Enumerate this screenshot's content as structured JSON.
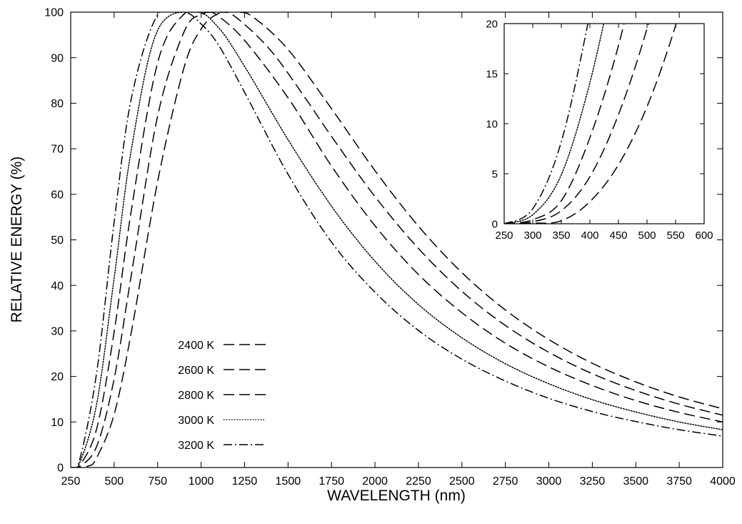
{
  "chart_data": [
    {
      "type": "line",
      "title": "",
      "xlabel": "WAVELENGTH (nm)",
      "ylabel": "RELATIVE ENERGY (%)",
      "xlim": [
        250,
        4000
      ],
      "ylim": [
        0,
        100
      ],
      "xticks": [
        250,
        500,
        750,
        1000,
        1250,
        1500,
        1750,
        2000,
        2250,
        2500,
        2750,
        3000,
        3250,
        3500,
        3750,
        4000
      ],
      "yticks": [
        0,
        10,
        20,
        30,
        40,
        50,
        60,
        70,
        80,
        90,
        100
      ],
      "grid": false,
      "legend_position": "lower-left",
      "series": [
        {
          "name": "2400 K",
          "style": "long-dash",
          "x": [
            250,
            350,
            400,
            500,
            600,
            750,
            900,
            1000,
            1100,
            1207,
            1300,
            1500,
            1750,
            2000,
            2250,
            2500,
            2750,
            3000,
            3250,
            3500,
            3750,
            4000
          ],
          "values": [
            0.0,
            0.3,
            2.2,
            11.7,
            30.0,
            62.8,
            87.6,
            96.3,
            99.7,
            100.0,
            98.9,
            91.8,
            78.8,
            65.2,
            53.0,
            42.8,
            34.6,
            28.1,
            22.9,
            18.8,
            15.5,
            12.9
          ]
        },
        {
          "name": "2600 K",
          "style": "long-dash",
          "x": [
            250,
            300,
            400,
            500,
            600,
            750,
            900,
            1000,
            1114,
            1200,
            1400,
            1600,
            1750,
            2000,
            2250,
            2500,
            2750,
            3000,
            3250,
            3500,
            3750,
            4000
          ],
          "values": [
            0.0,
            0.2,
            4.7,
            19.5,
            42.6,
            77.2,
            95.5,
            99.5,
            100.0,
            98.9,
            91.6,
            81.1,
            72.7,
            59.5,
            48.1,
            38.7,
            31.2,
            25.3,
            20.6,
            16.9,
            13.9,
            11.5
          ]
        },
        {
          "name": "2800 K",
          "style": "long-dash",
          "x": [
            250,
            300,
            400,
            500,
            600,
            750,
            900,
            1035,
            1100,
            1250,
            1500,
            1750,
            2000,
            2250,
            2500,
            2750,
            3000,
            3250,
            3500,
            3750,
            4000
          ],
          "values": [
            0.0,
            0.4,
            8.6,
            29.8,
            56.8,
            88.9,
            99.5,
            100.0,
            99.1,
            93.8,
            81.2,
            66.2,
            53.1,
            42.4,
            34.0,
            27.3,
            22.1,
            18.0,
            14.7,
            12.1,
            10.0
          ]
        },
        {
          "name": "3000 K",
          "style": "dotted",
          "x": [
            250,
            300,
            400,
            500,
            600,
            750,
            966,
            1100,
            1250,
            1500,
            1750,
            2000,
            2250,
            2500,
            2750,
            3000,
            3250,
            3500,
            3750,
            4000
          ],
          "values": [
            0.0,
            0.9,
            14.1,
            41.6,
            70.1,
            96.0,
            100.0,
            96.6,
            88.1,
            72.0,
            57.4,
            45.3,
            35.8,
            28.5,
            22.8,
            18.4,
            14.9,
            12.2,
            10.0,
            8.3
          ]
        },
        {
          "name": "3200 K",
          "style": "dash-dot",
          "x": [
            250,
            300,
            400,
            500,
            600,
            750,
            906,
            1000,
            1100,
            1250,
            1500,
            1750,
            2000,
            2250,
            2500,
            2750,
            3000,
            3250,
            3500,
            3750,
            4000
          ],
          "values": [
            0.0,
            1.5,
            21.0,
            53.9,
            81.3,
            99.4,
            100.0,
            97.4,
            92.8,
            82.4,
            64.4,
            49.5,
            38.5,
            30.1,
            23.8,
            19.0,
            15.2,
            12.3,
            10.1,
            8.3,
            6.9
          ]
        }
      ],
      "legend": {
        "entries": [
          "2400 K",
          "2600 K",
          "2800 K",
          "3000 K",
          "3200 K"
        ]
      }
    },
    {
      "type": "line",
      "title": "",
      "xlabel": "",
      "ylabel": "",
      "xlim": [
        250,
        600
      ],
      "ylim": [
        0,
        20
      ],
      "xticks": [
        250,
        300,
        350,
        400,
        450,
        500,
        550,
        600
      ],
      "yticks": [
        0,
        5,
        10,
        15,
        20
      ],
      "grid": false,
      "series": [
        {
          "style": "long-dash",
          "x": [
            250,
            300,
            350,
            400,
            450,
            500,
            550,
            600
          ],
          "values": [
            0.0,
            0.05,
            0.3,
            2.2,
            5.9,
            11.7,
            19.8,
            30.0
          ]
        },
        {
          "style": "long-dash",
          "x": [
            250,
            300,
            350,
            400,
            450,
            500,
            550
          ],
          "values": [
            0.0,
            0.2,
            1.3,
            4.7,
            10.9,
            19.5,
            30.4
          ]
        },
        {
          "style": "long-dash",
          "x": [
            250,
            300,
            350,
            400,
            450,
            500
          ],
          "values": [
            0.0,
            0.4,
            2.3,
            8.6,
            17.8,
            29.8
          ]
        },
        {
          "style": "dotted",
          "x": [
            250,
            300,
            350,
            400,
            450
          ],
          "values": [
            0.0,
            0.9,
            4.9,
            14.1,
            26.8
          ]
        },
        {
          "style": "dash-dot",
          "x": [
            250,
            300,
            350,
            400,
            450
          ],
          "values": [
            0.0,
            1.5,
            8.2,
            21.0,
            36.4
          ]
        }
      ]
    }
  ]
}
